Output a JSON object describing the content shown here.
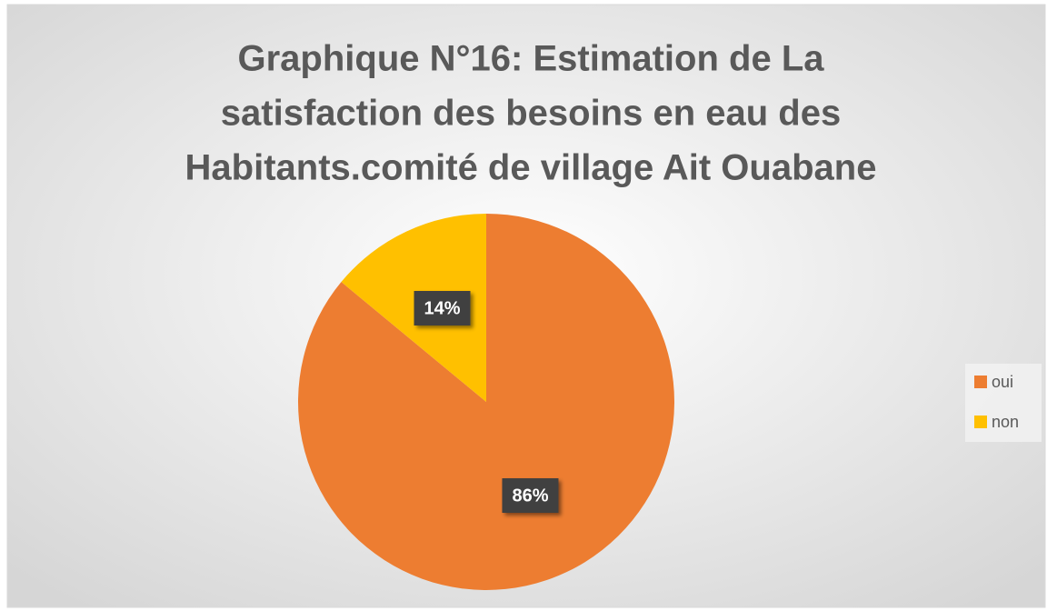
{
  "chart_data": {
    "type": "pie",
    "title": [
      "Graphique N°16: Estimation de La",
      "satisfaction des besoins en eau des",
      "Habitants.comité de village Ait Ouabane"
    ],
    "categories": [
      "oui",
      "non"
    ],
    "values": [
      86,
      14
    ],
    "value_labels": [
      "86%",
      "14%"
    ],
    "colors": [
      "#ED7D31",
      "#FFC000"
    ],
    "legend": "right"
  }
}
